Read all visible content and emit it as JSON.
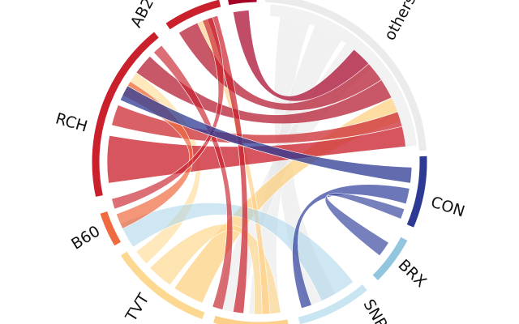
{
  "nodes": [
    {
      "label": "AB2"
    },
    {
      "label": "others"
    },
    {
      "label": "RCH"
    },
    {
      "label": "CON"
    },
    {
      "label": "B60"
    },
    {
      "label": "BRX"
    },
    {
      "label": "TVT"
    },
    {
      "label": "SNP"
    }
  ]
}
